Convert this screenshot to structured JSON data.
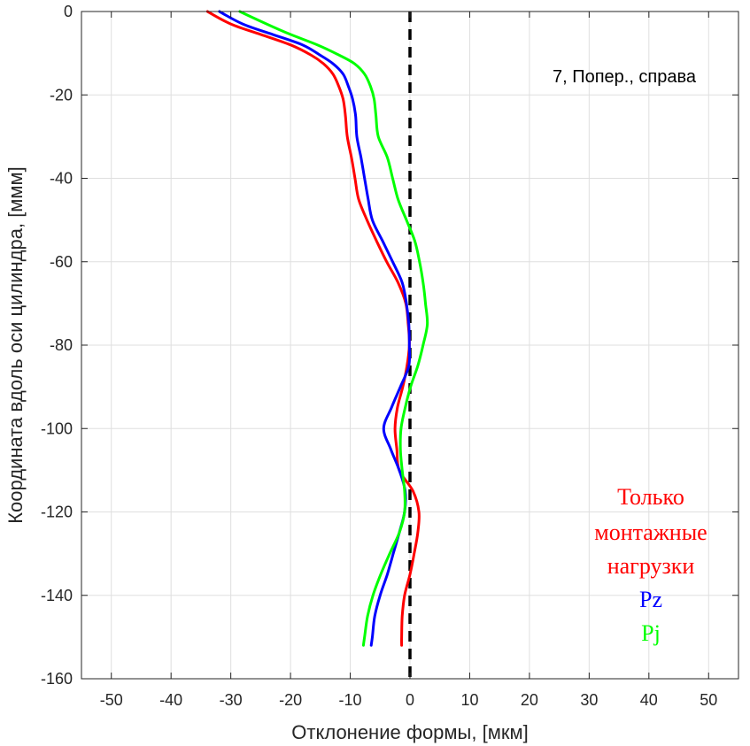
{
  "chart_data": {
    "type": "line",
    "xlabel": "Отклонение формы, [мкм]",
    "ylabel": "Координата вдоль оси цилиндра, [ммм]",
    "xlim": [
      -55,
      55
    ],
    "ylim": [
      -160,
      0
    ],
    "xticks": [
      -50,
      -40,
      -30,
      -20,
      -10,
      0,
      10,
      20,
      30,
      40,
      50
    ],
    "yticks": [
      0,
      -20,
      -40,
      -60,
      -80,
      -100,
      -120,
      -140,
      -160
    ],
    "grid": true,
    "annotation": "7, Попер., справа",
    "legend_placement": "bottom-right",
    "reference_line": {
      "x": 0,
      "style": "dashed",
      "color": "#000000"
    },
    "series": [
      {
        "name": "Только монтажные нагрузки",
        "color": "#ff0000",
        "points": [
          [
            -33.9,
            0
          ],
          [
            -30,
            -3
          ],
          [
            -25,
            -5.5
          ],
          [
            -20,
            -8
          ],
          [
            -16.5,
            -10.5
          ],
          [
            -14.5,
            -12.5
          ],
          [
            -12.9,
            -15
          ],
          [
            -11.9,
            -18
          ],
          [
            -11.2,
            -21
          ],
          [
            -10.8,
            -25
          ],
          [
            -10.5,
            -30
          ],
          [
            -9.8,
            -35
          ],
          [
            -9.2,
            -40
          ],
          [
            -8.6,
            -45
          ],
          [
            -7.2,
            -50
          ],
          [
            -5.6,
            -55
          ],
          [
            -3.9,
            -60
          ],
          [
            -2,
            -65
          ],
          [
            -0.7,
            -70
          ],
          [
            -0.3,
            -75
          ],
          [
            -0.1,
            -80
          ],
          [
            -0.5,
            -85
          ],
          [
            -1.2,
            -90
          ],
          [
            -2.1,
            -95
          ],
          [
            -2.5,
            -100
          ],
          [
            -2.2,
            -105
          ],
          [
            -1.8,
            -110
          ],
          [
            0.5,
            -115
          ],
          [
            1.5,
            -120
          ],
          [
            1.3,
            -125
          ],
          [
            0.7,
            -130
          ],
          [
            0,
            -135
          ],
          [
            -0.9,
            -140
          ],
          [
            -1.3,
            -145
          ],
          [
            -1.4,
            -150
          ],
          [
            -1.4,
            -152
          ]
        ]
      },
      {
        "name": "Pz",
        "color": "#0000ff",
        "points": [
          [
            -31.9,
            0
          ],
          [
            -28,
            -3
          ],
          [
            -23,
            -5.5
          ],
          [
            -18,
            -8
          ],
          [
            -15,
            -10.5
          ],
          [
            -12.9,
            -12.5
          ],
          [
            -11.2,
            -15
          ],
          [
            -10.3,
            -18
          ],
          [
            -9.6,
            -21
          ],
          [
            -9.1,
            -25
          ],
          [
            -8.9,
            -30
          ],
          [
            -8.2,
            -35
          ],
          [
            -7.6,
            -40
          ],
          [
            -7,
            -45
          ],
          [
            -6.3,
            -50
          ],
          [
            -4.6,
            -55
          ],
          [
            -2.9,
            -60
          ],
          [
            -1.3,
            -65
          ],
          [
            -0.6,
            -70
          ],
          [
            -0.2,
            -75
          ],
          [
            -0.1,
            -80
          ],
          [
            -0.2,
            -85
          ],
          [
            -1.6,
            -90
          ],
          [
            -3.1,
            -95
          ],
          [
            -4.4,
            -100
          ],
          [
            -3.2,
            -105
          ],
          [
            -1.8,
            -110
          ],
          [
            -0.8,
            -115
          ],
          [
            -0.9,
            -120
          ],
          [
            -1.8,
            -125
          ],
          [
            -2.8,
            -130
          ],
          [
            -3.8,
            -135
          ],
          [
            -5,
            -140
          ],
          [
            -5.9,
            -145
          ],
          [
            -6.3,
            -150
          ],
          [
            -6.5,
            -152
          ]
        ]
      },
      {
        "name": "Pj",
        "color": "#00ff00",
        "points": [
          [
            -28.5,
            0
          ],
          [
            -24,
            -3
          ],
          [
            -20,
            -5.5
          ],
          [
            -15.5,
            -8
          ],
          [
            -11.8,
            -10.5
          ],
          [
            -9.3,
            -12.5
          ],
          [
            -7.6,
            -15
          ],
          [
            -6.6,
            -18
          ],
          [
            -6,
            -21
          ],
          [
            -5.7,
            -25
          ],
          [
            -5.3,
            -30
          ],
          [
            -3.8,
            -35
          ],
          [
            -2.9,
            -40
          ],
          [
            -2,
            -45
          ],
          [
            -0.6,
            -50
          ],
          [
            0.8,
            -55
          ],
          [
            1.6,
            -60
          ],
          [
            2.2,
            -65
          ],
          [
            2.6,
            -70
          ],
          [
            2.9,
            -75
          ],
          [
            2.2,
            -80
          ],
          [
            1.3,
            -85
          ],
          [
            0.1,
            -90
          ],
          [
            -0.8,
            -95
          ],
          [
            -1.5,
            -100
          ],
          [
            -1.6,
            -105
          ],
          [
            -1.3,
            -110
          ],
          [
            -0.9,
            -115
          ],
          [
            -0.9,
            -120
          ],
          [
            -1.8,
            -125
          ],
          [
            -3.4,
            -130
          ],
          [
            -4.9,
            -135
          ],
          [
            -6.2,
            -140
          ],
          [
            -7.1,
            -145
          ],
          [
            -7.6,
            -150
          ],
          [
            -7.8,
            -152
          ]
        ]
      }
    ],
    "legend": [
      {
        "text": "Только",
        "color": "#ff0000"
      },
      {
        "text": "монтажные",
        "color": "#ff0000"
      },
      {
        "text": "нагрузки",
        "color": "#ff0000"
      },
      {
        "text": "Pz",
        "color": "#0000ff"
      },
      {
        "text": "Pj",
        "color": "#00ff00"
      }
    ]
  }
}
